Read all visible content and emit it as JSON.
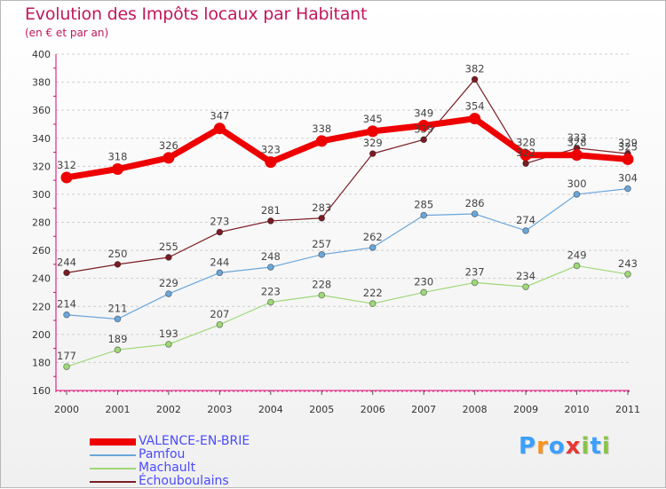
{
  "title": "Evolution des Impôts locaux par Habitant",
  "subtitle": "(en € et par an)",
  "logo": {
    "text": "Proxiti",
    "letters": [
      "P",
      "r",
      "o",
      "x",
      "i",
      "t",
      "i"
    ],
    "colors": [
      "#3aa0ff",
      "#f7931e",
      "#3aa0ff",
      "#e53935",
      "#8bc34a",
      "#3aa0ff",
      "#8bc34a"
    ]
  },
  "chart_data": {
    "type": "line",
    "x": [
      "2000",
      "2001",
      "2002",
      "2003",
      "2004",
      "2005",
      "2006",
      "2007",
      "2008",
      "2009",
      "2010",
      "2011"
    ],
    "ylim": [
      160,
      400
    ],
    "yticks": [
      160,
      180,
      200,
      220,
      240,
      260,
      280,
      300,
      320,
      340,
      360,
      380,
      400
    ],
    "grid": "horizontal-dashed",
    "legend_position": "bottom-left",
    "series": [
      {
        "name": "Échouboulains",
        "color": "#7a1c24",
        "values": [
          244,
          250,
          255,
          273,
          281,
          283,
          329,
          339,
          382,
          322,
          333,
          329
        ],
        "labels": [
          "244",
          "250",
          "255",
          "273",
          "281",
          "283",
          "329",
          "339",
          "382",
          "322",
          "333",
          "329"
        ]
      },
      {
        "name": "Machault",
        "color": "#9ed878",
        "values": [
          177,
          189,
          193,
          207,
          223,
          228,
          222,
          230,
          237,
          234,
          249,
          243
        ],
        "labels": [
          "177",
          "189",
          "193",
          "207",
          "223",
          "228",
          "222",
          "230",
          "237",
          "234",
          "249",
          "243"
        ]
      },
      {
        "name": "Pamfou",
        "color": "#6aa6da",
        "values": [
          214,
          211,
          229,
          244,
          248,
          257,
          262,
          285,
          286,
          274,
          300,
          304
        ],
        "labels": [
          "214",
          "211",
          "229",
          "244",
          "248",
          "257",
          "262",
          "285",
          "286",
          "274",
          "300",
          "304"
        ]
      },
      {
        "name": "VALENCE-EN-BRIE",
        "color": "#ee0000",
        "values": [
          312,
          318,
          326,
          347,
          323,
          338,
          345,
          349,
          354,
          328,
          328,
          325
        ],
        "labels": [
          "312",
          "318",
          "326",
          "347",
          "323",
          "338",
          "345",
          "349",
          "354",
          "328",
          "328",
          "325"
        ]
      }
    ],
    "legend": [
      "VALENCE-EN-BRIE",
      "Pamfou",
      "Machault",
      "Échouboulains"
    ]
  }
}
